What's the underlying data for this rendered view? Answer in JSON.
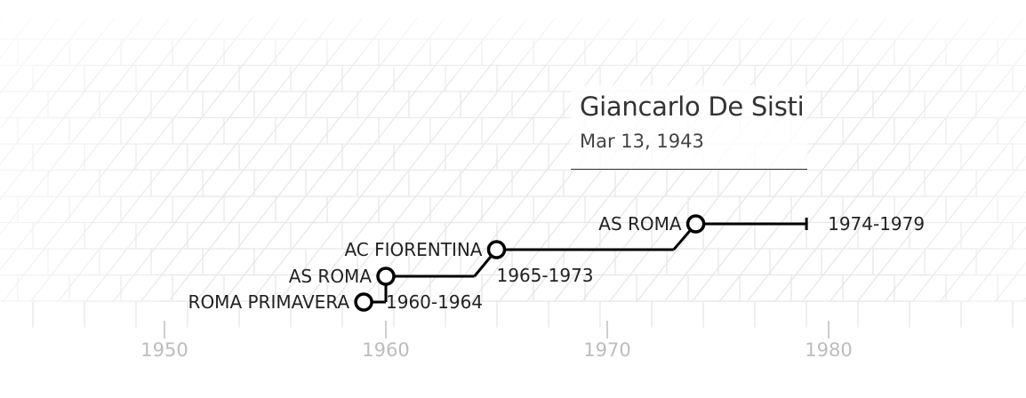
{
  "profile": {
    "name": "Giancarlo De Sisti",
    "birth_date": "Mar 13, 1943"
  },
  "chart_data": {
    "type": "timeline",
    "xaxis": {
      "ticks": [
        1950,
        1960,
        1970,
        1980
      ],
      "range": [
        1944,
        1989
      ]
    },
    "colors": {
      "line": "#000000",
      "grid": "#e6e6e6",
      "tick_label": "#bdbdbd"
    },
    "career": [
      {
        "club": "ROMA PRIMAVERA",
        "start": 1959,
        "end": 1960,
        "period": ""
      },
      {
        "club": "AS ROMA",
        "start": 1960,
        "end": 1964,
        "period": "1960-1964"
      },
      {
        "club": "AC FIORENTINA",
        "start": 1965,
        "end": 1973,
        "period": "1965-1973"
      },
      {
        "club": "AS ROMA",
        "start": 1974,
        "end": 1979,
        "period": "1974-1979"
      }
    ]
  }
}
